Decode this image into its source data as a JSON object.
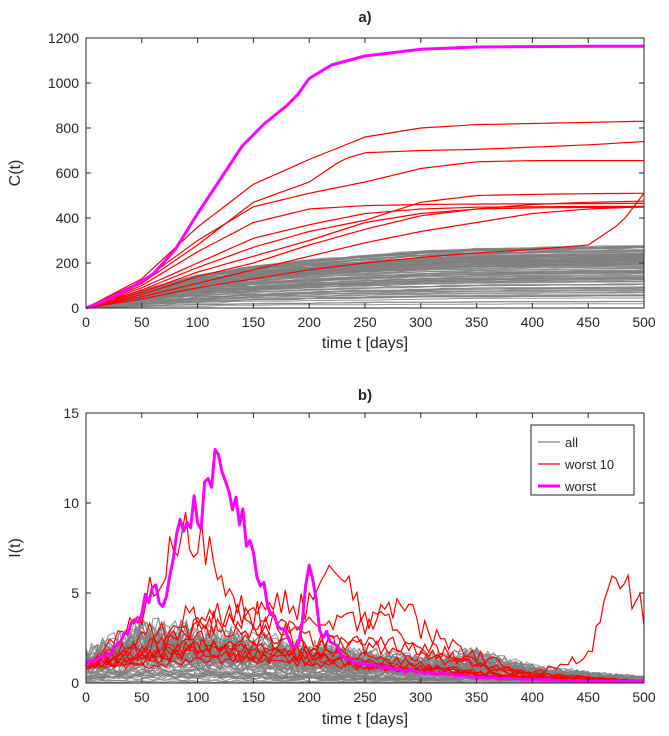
{
  "colors": {
    "all": "#808080",
    "worst10": "#ff0000",
    "worst": "#ff00ff",
    "axis": "#262626"
  },
  "chart_data": [
    {
      "type": "line",
      "title": "a)",
      "xlabel": "time t [days]",
      "ylabel": "C(t)",
      "xlim": [
        0,
        500
      ],
      "ylim": [
        0,
        1200
      ],
      "xticks": [
        0,
        50,
        100,
        150,
        200,
        250,
        300,
        350,
        400,
        450,
        500
      ],
      "yticks": [
        0,
        200,
        400,
        600,
        800,
        1000,
        1200
      ],
      "grid": false,
      "series": [
        {
          "name": "worst",
          "color": "#ff00ff",
          "x": [
            0,
            20,
            40,
            60,
            80,
            100,
            120,
            140,
            160,
            180,
            190,
            200,
            220,
            250,
            300,
            350,
            400,
            450,
            500
          ],
          "y": [
            0,
            40,
            90,
            150,
            260,
            420,
            570,
            720,
            820,
            900,
            950,
            1020,
            1080,
            1120,
            1150,
            1160,
            1162,
            1163,
            1163
          ]
        },
        {
          "name": "worst 10",
          "color": "#ff0000",
          "lines": [
            {
              "x": [
                0,
                50,
                100,
                150,
                200,
                250,
                300,
                350,
                400,
                450,
                500
              ],
              "y": [
                0,
                130,
                360,
                550,
                660,
                760,
                800,
                815,
                820,
                825,
                830
              ]
            },
            {
              "x": [
                0,
                50,
                100,
                150,
                200,
                230,
                250,
                300,
                350,
                400,
                450,
                500
              ],
              "y": [
                0,
                110,
                280,
                470,
                560,
                660,
                690,
                700,
                705,
                715,
                725,
                740
              ]
            },
            {
              "x": [
                0,
                50,
                100,
                150,
                200,
                250,
                300,
                350,
                400,
                450,
                500
              ],
              "y": [
                0,
                120,
                300,
                450,
                510,
                560,
                620,
                650,
                655,
                655,
                655
              ]
            },
            {
              "x": [
                0,
                50,
                100,
                150,
                200,
                250,
                300,
                350,
                400,
                450,
                500
              ],
              "y": [
                0,
                100,
                250,
                380,
                440,
                455,
                460,
                462,
                463,
                464,
                465
              ]
            },
            {
              "x": [
                0,
                50,
                100,
                150,
                200,
                250,
                300,
                350,
                400,
                450,
                500
              ],
              "y": [
                0,
                90,
                200,
                310,
                370,
                420,
                440,
                448,
                450,
                451,
                452
              ]
            },
            {
              "x": [
                0,
                50,
                100,
                150,
                200,
                250,
                300,
                350,
                400,
                450,
                500
              ],
              "y": [
                0,
                80,
                180,
                270,
                340,
                390,
                470,
                500,
                505,
                508,
                510
              ]
            },
            {
              "x": [
                0,
                50,
                100,
                150,
                200,
                250,
                300,
                350,
                400,
                450,
                500
              ],
              "y": [
                0,
                70,
                160,
                230,
                300,
                380,
                420,
                440,
                445,
                447,
                448
              ]
            },
            {
              "x": [
                0,
                50,
                100,
                150,
                200,
                250,
                300,
                350,
                400,
                450,
                500
              ],
              "y": [
                0,
                60,
                140,
                200,
                280,
                350,
                410,
                440,
                460,
                470,
                475
              ]
            },
            {
              "x": [
                0,
                50,
                100,
                150,
                200,
                250,
                300,
                350,
                400,
                450,
                500
              ],
              "y": [
                0,
                50,
                110,
                170,
                230,
                290,
                340,
                380,
                420,
                440,
                450
              ]
            },
            {
              "x": [
                0,
                50,
                100,
                150,
                200,
                250,
                300,
                350,
                400,
                450,
                480,
                500
              ],
              "y": [
                0,
                40,
                90,
                130,
                170,
                200,
                225,
                245,
                260,
                280,
                380,
                510
              ]
            }
          ]
        },
        {
          "name": "all",
          "color": "#808080",
          "band_max": [
            0,
            80,
            150,
            190,
            220,
            240,
            260,
            270,
            275,
            280,
            285
          ],
          "band_min": 0
        }
      ]
    },
    {
      "type": "line",
      "title": "b)",
      "xlabel": "time t [days]",
      "ylabel": "I(t)",
      "xlim": [
        0,
        500
      ],
      "ylim": [
        0,
        15
      ],
      "xticks": [
        0,
        50,
        100,
        150,
        200,
        250,
        300,
        350,
        400,
        450,
        500
      ],
      "yticks": [
        0,
        5,
        10,
        15
      ],
      "grid": false,
      "legend_position": "top-right",
      "legend": [
        "all",
        "worst 10",
        "worst"
      ],
      "series": [
        {
          "name": "worst",
          "color": "#ff00ff",
          "x": [
            0,
            20,
            40,
            50,
            60,
            70,
            80,
            90,
            100,
            110,
            115,
            120,
            130,
            140,
            150,
            160,
            170,
            180,
            190,
            200,
            210,
            230,
            250,
            300,
            350,
            400,
            450,
            500
          ],
          "y": [
            1,
            1.5,
            3,
            4,
            5.5,
            4.5,
            8,
            10,
            9,
            11,
            12.5,
            13.2,
            11,
            9,
            7.5,
            5,
            3.5,
            2.5,
            2,
            6.8,
            3,
            1.5,
            1,
            0.6,
            0.3,
            0.2,
            0.1,
            0.1
          ]
        },
        {
          "name": "worst 10",
          "color": "#ff0000",
          "lines": [
            {
              "x": [
                0,
                50,
                100,
                150,
                200,
                250,
                300,
                350,
                400,
                450,
                470,
                480,
                490,
                500
              ],
              "y": [
                1,
                1.5,
                2,
                1.8,
                1.5,
                1.2,
                0.9,
                0.6,
                0.5,
                1.5,
                5,
                4.5,
                5.3,
                3.5
              ]
            },
            {
              "x": [
                0,
                40,
                80,
                100,
                120,
                150,
                200,
                250,
                300,
                400,
                500
              ],
              "y": [
                1,
                3,
                7.5,
                8.5,
                6,
                4,
                2,
                1,
                0.6,
                0.3,
                0.1
              ]
            },
            {
              "x": [
                0,
                50,
                100,
                150,
                200,
                225,
                250,
                300,
                350,
                400,
                500
              ],
              "y": [
                1,
                2,
                3,
                4,
                4.5,
                6.1,
                4,
                2,
                1,
                0.4,
                0.1
              ]
            },
            {
              "x": [
                0,
                50,
                100,
                150,
                200,
                250,
                280,
                300,
                350,
                400,
                500
              ],
              "y": [
                1,
                2,
                3,
                3.5,
                3,
                3.5,
                4.8,
                3,
                1.5,
                0.5,
                0.1
              ]
            },
            {
              "x": [
                0,
                50,
                100,
                150,
                200,
                250,
                300,
                350,
                400,
                500
              ],
              "y": [
                1,
                2.5,
                4,
                3,
                2.5,
                2,
                1.5,
                1,
                0.5,
                0.1
              ]
            },
            {
              "x": [
                0,
                50,
                100,
                150,
                200,
                250,
                300,
                350,
                400,
                500
              ],
              "y": [
                1,
                1.5,
                2,
                2.5,
                2,
                2.5,
                2,
                1.2,
                0.5,
                0.1
              ]
            },
            {
              "x": [
                0,
                50,
                100,
                150,
                200,
                250,
                300,
                350,
                400,
                500
              ],
              "y": [
                1,
                1.5,
                2.5,
                2,
                1.5,
                1,
                0.8,
                0.5,
                0.3,
                0.1
              ]
            },
            {
              "x": [
                0,
                50,
                100,
                150,
                200,
                250,
                300,
                350,
                400,
                500
              ],
              "y": [
                1,
                1.2,
                1.8,
                1.5,
                1.2,
                1,
                0.8,
                0.5,
                0.3,
                0.1
              ]
            },
            {
              "x": [
                0,
                50,
                100,
                150,
                200,
                250,
                300,
                350,
                400,
                500
              ],
              "y": [
                1,
                1,
                1.2,
                1.5,
                1.8,
                1.5,
                1,
                0.6,
                0.3,
                0.1
              ]
            },
            {
              "x": [
                0,
                50,
                100,
                150,
                200,
                250,
                300,
                350,
                400,
                500
              ],
              "y": [
                1,
                1.3,
                1.6,
                1.4,
                1.1,
                0.9,
                0.7,
                0.5,
                0.3,
                0.1
              ]
            }
          ]
        },
        {
          "name": "all",
          "color": "#808080",
          "band_max": [
            1.5,
            2.8,
            2.5,
            2.2,
            1.8,
            1.5,
            1.2,
            1.5,
            0.8,
            0.5,
            0.3
          ],
          "band_min": 0
        }
      ]
    }
  ]
}
